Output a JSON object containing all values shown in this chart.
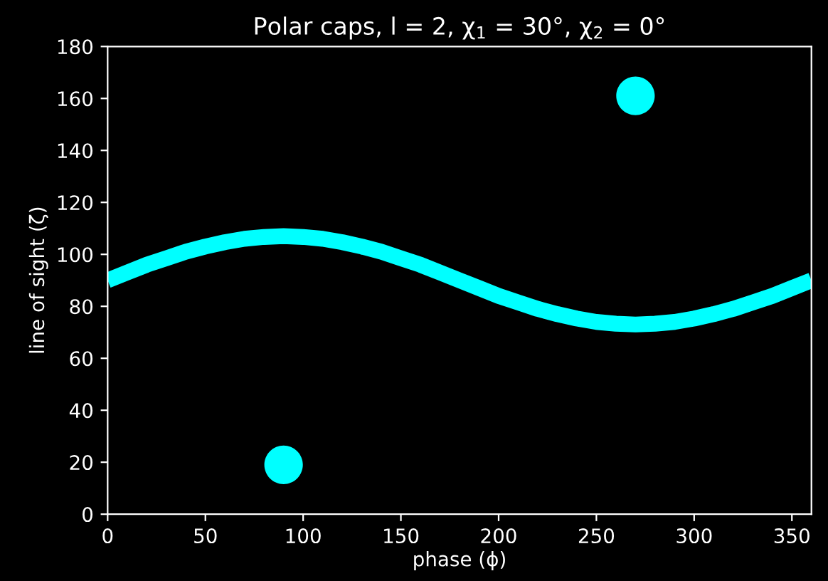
{
  "chart_data": {
    "type": "line",
    "title": "Polar caps, l = 2, χ$_{1}$ = 30°, χ$_{2}$ = 0°",
    "xlabel": "phase (ϕ)",
    "ylabel": "line of sight (ζ)",
    "xlim": [
      0,
      360
    ],
    "ylim": [
      0,
      180
    ],
    "xticks": [
      0,
      50,
      100,
      150,
      200,
      250,
      300,
      350
    ],
    "yticks": [
      0,
      20,
      40,
      60,
      80,
      100,
      120,
      140,
      160,
      180
    ],
    "grid": false,
    "legend": false,
    "series": [
      {
        "color": "#00ffff",
        "x": [
          0,
          10,
          20,
          30,
          40,
          50,
          60,
          70,
          80,
          90,
          100,
          110,
          120,
          130,
          140,
          150,
          160,
          170,
          180,
          190,
          200,
          210,
          220,
          230,
          240,
          250,
          260,
          270,
          280,
          290,
          300,
          310,
          320,
          330,
          340,
          350,
          360
        ],
        "values": [
          90,
          93,
          96,
          98.5,
          101,
          103,
          104.7,
          106,
          106.7,
          107,
          106.7,
          106,
          104.7,
          103,
          101,
          98.5,
          96,
          93,
          90,
          87,
          84,
          81.5,
          79,
          77,
          75.3,
          74,
          73.3,
          73,
          73.3,
          74,
          75.3,
          77,
          79,
          81.5,
          84,
          87,
          90
        ]
      },
      {
        "type": "scatter",
        "color": "#00ffff",
        "marker": "circle",
        "x": [
          90,
          270
        ],
        "values": [
          19,
          161
        ]
      }
    ]
  }
}
